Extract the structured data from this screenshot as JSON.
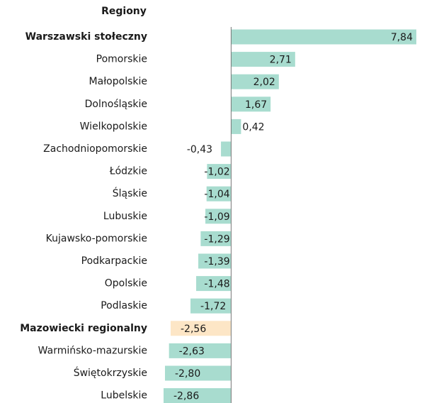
{
  "chart_data": {
    "type": "hbar",
    "header": "Regiony",
    "categories": [
      "Warszawski stołeczny",
      "Pomorskie",
      "Małopolskie",
      "Dolnośląskie",
      "Wielkopolskie",
      "Zachodniopomorskie",
      "Łódzkie",
      "Śląskie",
      "Lubuskie",
      "Kujawsko-pomorskie",
      "Podkarpackie",
      "Opolskie",
      "Podlaskie",
      "Mazowiecki regionalny",
      "Warmińsko-mazurskie",
      "Świętokrzyskie",
      "Lubelskie"
    ],
    "values": [
      7.84,
      2.71,
      2.02,
      1.67,
      0.42,
      -0.43,
      -1.02,
      -1.04,
      -1.09,
      -1.29,
      -1.39,
      -1.48,
      -1.72,
      -2.56,
      -2.63,
      -2.8,
      -2.86
    ],
    "value_labels": [
      "7,84",
      "2,71",
      "2,02",
      "1,67",
      "0,42",
      "-0,43",
      "-1,02",
      "-1,04",
      "-1,09",
      "-1,29",
      "-1,39",
      "-1,48",
      "-1,72",
      "-2,56",
      "-2,63",
      "-2,80",
      "-2,86"
    ],
    "colors": [
      "#a8dccf",
      "#a8dccf",
      "#a8dccf",
      "#a8dccf",
      "#a8dccf",
      "#a8dccf",
      "#a8dccf",
      "#a8dccf",
      "#a8dccf",
      "#a8dccf",
      "#a8dccf",
      "#a8dccf",
      "#a8dccf",
      "#fde6c6",
      "#a8dccf",
      "#a8dccf",
      "#a8dccf"
    ],
    "bold": [
      true,
      false,
      false,
      false,
      false,
      false,
      false,
      false,
      false,
      false,
      false,
      false,
      false,
      true,
      false,
      false,
      false
    ]
  }
}
